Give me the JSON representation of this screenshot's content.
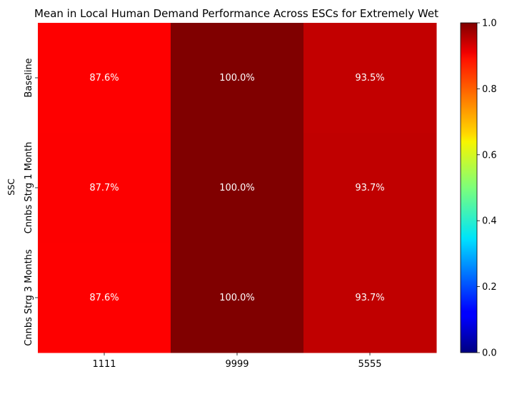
{
  "chart_data": {
    "type": "heatmap",
    "title": "Mean in Local Human Demand Performance Across ESCs for Extremely Wet",
    "xlabel": "",
    "ylabel": "SSC",
    "x_categories": [
      "1111",
      "9999",
      "5555"
    ],
    "y_categories": [
      "Baseline",
      "Cnnbs Strg 1 Month",
      "Cnnbs Strg 3 Months"
    ],
    "values": [
      [
        0.876,
        1.0,
        0.935
      ],
      [
        0.877,
        1.0,
        0.937
      ],
      [
        0.876,
        1.0,
        0.937
      ]
    ],
    "annotations": [
      [
        "87.6%",
        "100.0%",
        "93.5%"
      ],
      [
        "87.7%",
        "100.0%",
        "93.7%"
      ],
      [
        "87.6%",
        "100.0%",
        "93.7%"
      ]
    ],
    "colormap": "jet",
    "colorbar": {
      "min": 0.0,
      "max": 1.0,
      "ticks": [
        "0.0",
        "0.2",
        "0.4",
        "0.6",
        "0.8",
        "1.0"
      ]
    }
  }
}
